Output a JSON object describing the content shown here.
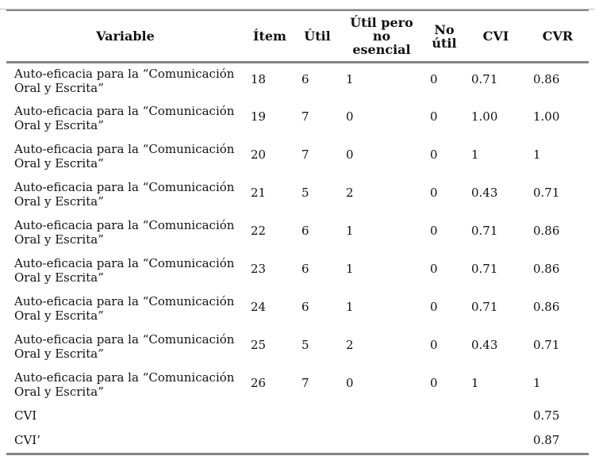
{
  "page": {
    "background_color": "#ffffff",
    "top_edge_line_color": "#bdbdbd",
    "table_rule_color": "#848484",
    "text_color": "#111111"
  },
  "table": {
    "column_keys": [
      "variable",
      "item",
      "util",
      "util-pero-no-esencial",
      "no-util",
      "cvi",
      "cvr"
    ],
    "headers": [
      "Variable",
      "Ítem",
      "Útil",
      "Útil pero no esencial",
      "No útil",
      "CVI",
      "CVR"
    ],
    "rows": [
      [
        "Auto-eficacia para la “Comunicación Oral y Escrita”",
        "18",
        "6",
        "1",
        "0",
        "0.71",
        "0.86"
      ],
      [
        "Auto-eficacia para la “Comunicación Oral y Escrita”",
        "19",
        "7",
        "0",
        "0",
        "1.00",
        "1.00"
      ],
      [
        "Auto-eficacia para la “Comunicación Oral y Escrita”",
        "20",
        "7",
        "0",
        "0",
        "1",
        "1"
      ],
      [
        "Auto-eficacia para la “Comunicación Oral y Escrita”",
        "21",
        "5",
        "2",
        "0",
        "0.43",
        "0.71"
      ],
      [
        "Auto-eficacia para la “Comunicación Oral y Escrita”",
        "22",
        "6",
        "1",
        "0",
        "0.71",
        "0.86"
      ],
      [
        "Auto-eficacia para la “Comunicación Oral y Escrita”",
        "23",
        "6",
        "1",
        "0",
        "0.71",
        "0.86"
      ],
      [
        "Auto-eficacia para la “Comunicación Oral y Escrita”",
        "24",
        "6",
        "1",
        "0",
        "0.71",
        "0.86"
      ],
      [
        "Auto-eficacia para la “Comunicación Oral y Escrita”",
        "25",
        "5",
        "2",
        "0",
        "0.43",
        "0.71"
      ],
      [
        "Auto-eficacia para la “Comunicación Oral y Escrita”",
        "26",
        "7",
        "0",
        "0",
        "1",
        "1"
      ]
    ],
    "summary_rows": [
      [
        "CVI",
        "",
        "",
        "",
        "",
        "",
        "0.75"
      ],
      [
        "CVI’",
        "",
        "",
        "",
        "",
        "",
        "0.87"
      ]
    ]
  }
}
